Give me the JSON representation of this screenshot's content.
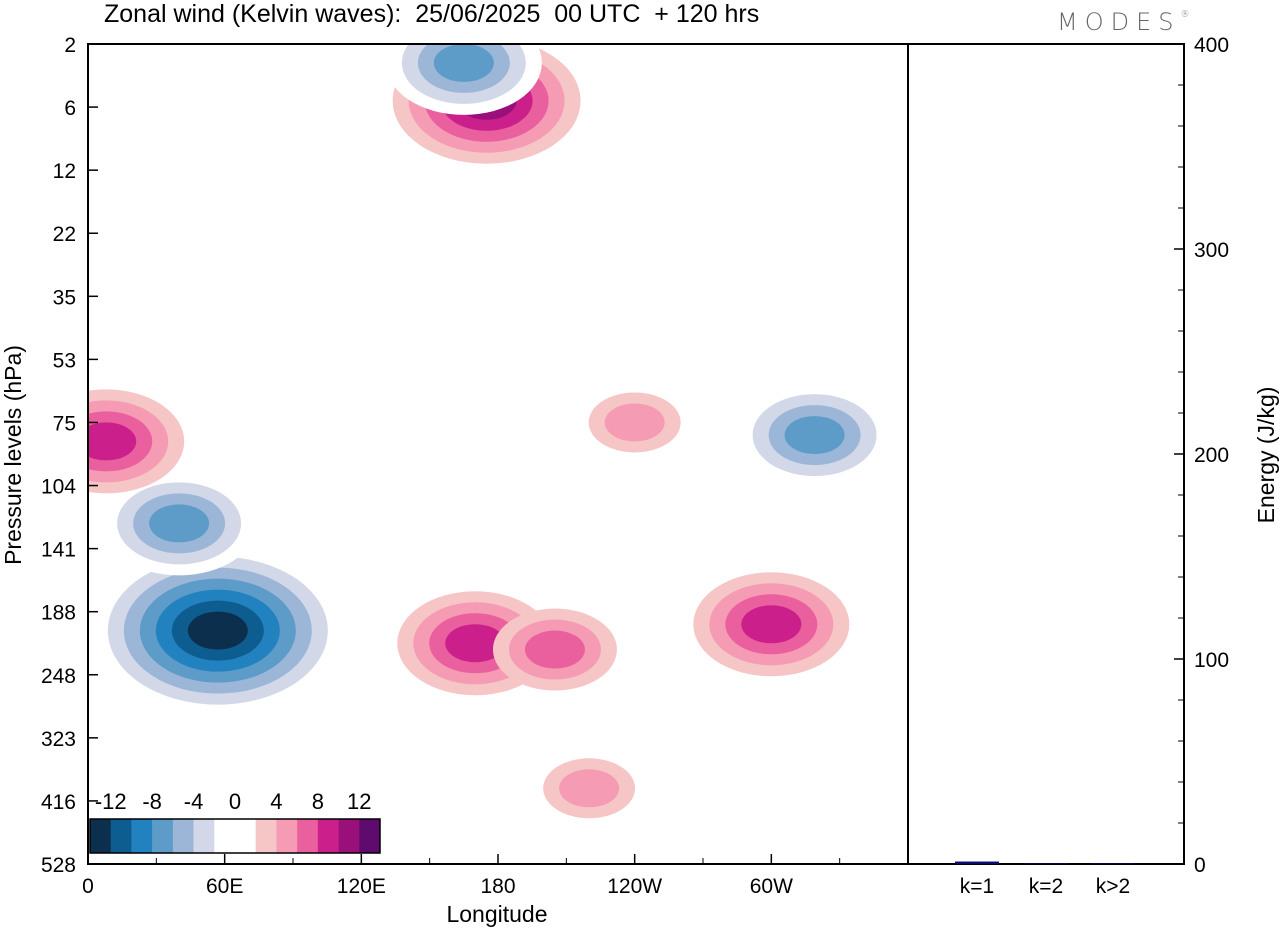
{
  "title": "Zonal wind (Kelvin waves):  25/06/2025  00 UTC  + 120 hrs",
  "logo": "MODES",
  "colors": {
    "levels": [
      "#0c2f4e",
      "#0d5d91",
      "#2282bf",
      "#5d9bc8",
      "#9cb6d8",
      "#d3d8e8",
      "#ffffff",
      "#ffffff",
      "#f6c6c6",
      "#f59bb4",
      "#ea5f9d",
      "#cb1f8b",
      "#99107a",
      "#5e0b6d"
    ],
    "energy_bar": "#0a0a6e"
  },
  "chart_data": [
    {
      "type": "heatmap",
      "title": "Zonal wind (Kelvin waves):  25/06/2025  00 UTC  + 120 hrs",
      "xlabel": "Longitude",
      "ylabel": "Pressure levels (hPa)",
      "x_ticks": [
        "0",
        "60E",
        "120E",
        "180",
        "120W",
        "60W"
      ],
      "y_ticks": [
        "2",
        "6",
        "12",
        "22",
        "35",
        "53",
        "75",
        "104",
        "141",
        "188",
        "248",
        "323",
        "416",
        "528"
      ],
      "colorbar": {
        "tick_labels": [
          "-12",
          "-8",
          "-4",
          "0",
          "4",
          "8",
          "12"
        ],
        "bounds": [
          -14,
          14
        ]
      },
      "features": [
        {
          "lon": 57,
          "level": 9.3,
          "value": -14
        },
        {
          "lon": 40,
          "level": 7.6,
          "value": -8
        },
        {
          "lon": 8,
          "level": 6.3,
          "value": 8
        },
        {
          "lon": 170,
          "level": 9.5,
          "value": 8
        },
        {
          "lon": 205,
          "level": 9.6,
          "value": 6
        },
        {
          "lon": 300,
          "level": 9.2,
          "value": 8
        },
        {
          "lon": 319,
          "level": 6.2,
          "value": -8
        },
        {
          "lon": 175,
          "level": 0.9,
          "value": 10
        },
        {
          "lon": 165,
          "level": 0.3,
          "value": -8
        },
        {
          "lon": 220,
          "level": 11.8,
          "value": 4
        },
        {
          "lon": 240,
          "level": 6.0,
          "value": 4
        }
      ]
    },
    {
      "type": "bar",
      "ylabel": "Energy (J/kg)",
      "categories": [
        "k=1",
        "k=2",
        "k>2"
      ],
      "values": [
        1.2,
        0.3,
        0.3
      ],
      "ylim": [
        0,
        400
      ],
      "y_ticks": [
        "0",
        "100",
        "200",
        "300",
        "400"
      ]
    }
  ]
}
